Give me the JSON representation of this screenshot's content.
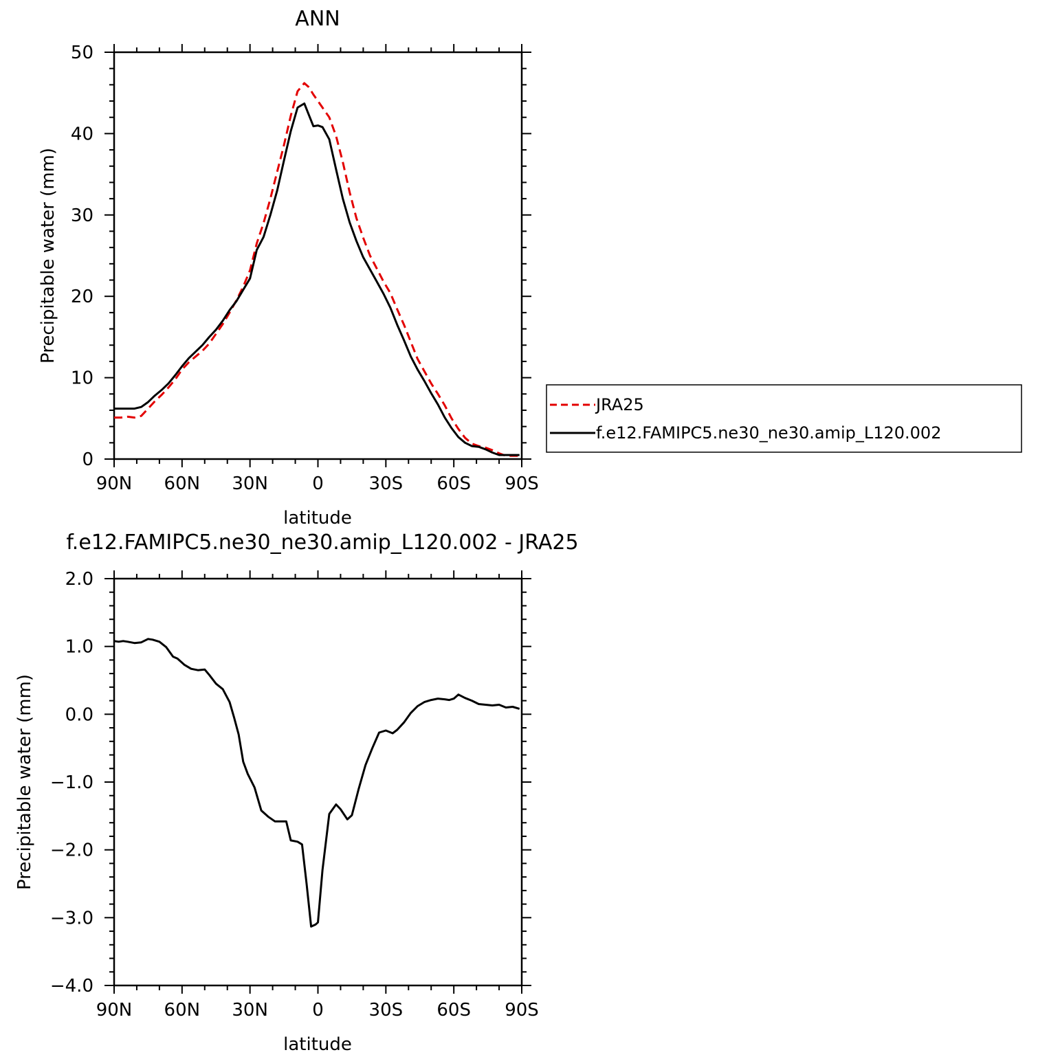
{
  "chart_data": [
    {
      "type": "line",
      "title": "ANN",
      "xlabel": "latitude",
      "ylabel": "Precipitable water (mm)",
      "xlim": [
        90,
        -90
      ],
      "ylim": [
        0,
        50
      ],
      "x_tick_labels": [
        "90N",
        "60N",
        "30N",
        "0",
        "30S",
        "60S",
        "90S"
      ],
      "y_tick_labels": [
        "0",
        "10",
        "20",
        "30",
        "40",
        "50"
      ],
      "grid": false,
      "legend_placement": "outside-right",
      "series": [
        {
          "name": "JRA25",
          "color": "#e30000",
          "style": "dashed",
          "x": [
            90,
            87,
            84,
            81,
            78,
            75,
            72,
            69,
            66,
            63,
            60,
            57,
            54,
            51,
            48,
            45,
            42,
            39,
            36,
            33,
            30,
            27,
            24,
            21,
            18,
            15,
            12,
            9,
            6,
            4,
            2,
            0,
            -2,
            -5,
            -8,
            -11,
            -14,
            -17,
            -20,
            -23,
            -26,
            -29,
            -32,
            -35,
            -38,
            -41,
            -44,
            -47,
            -50,
            -53,
            -56,
            -59,
            -62,
            -65,
            -68,
            -71,
            -74,
            -77,
            -80,
            -83,
            -86,
            -89
          ],
          "values": [
            5.1,
            5.1,
            5.2,
            5.1,
            5.3,
            6.2,
            7.1,
            7.9,
            8.8,
            9.8,
            11.0,
            11.9,
            12.6,
            13.3,
            14.2,
            15.4,
            16.6,
            18.0,
            19.5,
            21.2,
            23.2,
            26.5,
            29.0,
            32.0,
            35.3,
            38.6,
            42.2,
            45.2,
            46.2,
            45.7,
            44.8,
            44.0,
            43.2,
            42.0,
            39.7,
            36.5,
            32.8,
            29.6,
            27.2,
            25.0,
            23.4,
            21.8,
            20.4,
            18.4,
            16.5,
            14.4,
            12.3,
            10.8,
            9.3,
            8.0,
            6.6,
            5.0,
            3.7,
            2.6,
            1.9,
            1.6,
            1.4,
            1.1,
            0.7,
            0.4,
            0.4,
            0.4
          ]
        },
        {
          "name": "f.e12.FAMIPC5.ne30_ne30.amip_L120.002",
          "color": "#000000",
          "style": "solid",
          "x": [
            90,
            87,
            84,
            81,
            78,
            75,
            72,
            69,
            66,
            63,
            60,
            57,
            54,
            51,
            48,
            45,
            42,
            39,
            36,
            33,
            30,
            27,
            24,
            21,
            18,
            15,
            12,
            9,
            6,
            4,
            2,
            0,
            -2,
            -5,
            -8,
            -11,
            -14,
            -17,
            -20,
            -23,
            -26,
            -29,
            -32,
            -35,
            -38,
            -41,
            -44,
            -47,
            -50,
            -53,
            -56,
            -59,
            -62,
            -65,
            -68,
            -71,
            -74,
            -77,
            -80,
            -83,
            -86,
            -89
          ],
          "values": [
            6.2,
            6.2,
            6.2,
            6.2,
            6.4,
            7.0,
            7.8,
            8.5,
            9.3,
            10.3,
            11.4,
            12.4,
            13.2,
            14.0,
            15.0,
            15.9,
            17.0,
            18.3,
            19.4,
            20.8,
            22.2,
            25.7,
            27.3,
            30.0,
            33.0,
            36.7,
            40.3,
            43.2,
            43.7,
            42.3,
            40.9,
            41.0,
            40.8,
            39.3,
            35.6,
            32.0,
            29.1,
            26.8,
            24.8,
            23.3,
            21.8,
            20.3,
            18.6,
            16.5,
            14.6,
            12.6,
            11.0,
            9.6,
            8.1,
            6.7,
            5.1,
            3.8,
            2.7,
            2.0,
            1.6,
            1.5,
            1.2,
            0.8,
            0.5,
            0.5,
            0.5,
            0.5
          ]
        }
      ]
    },
    {
      "type": "line",
      "title": "f.e12.FAMIPC5.ne30_ne30.amip_L120.002 - JRA25",
      "xlabel": "latitude",
      "ylabel": "Precipitable water (mm)",
      "xlim": [
        90,
        -90
      ],
      "ylim": [
        -4.0,
        2.0
      ],
      "x_tick_labels": [
        "90N",
        "60N",
        "30N",
        "0",
        "30S",
        "60S",
        "90S"
      ],
      "y_tick_labels": [
        "−4.0",
        "−3.0",
        "−2.0",
        "−1.0",
        "0.0",
        "1.0",
        "2.0"
      ],
      "grid": false,
      "series": [
        {
          "color": "#000000",
          "style": "solid",
          "x": [
            90,
            88,
            86,
            84,
            81,
            78,
            75,
            73,
            70,
            67,
            64,
            62,
            59,
            56,
            53,
            50,
            48,
            45,
            42,
            39,
            37,
            35,
            33,
            31,
            28,
            25,
            22,
            19,
            16,
            14,
            12,
            9,
            7,
            5,
            3,
            1,
            0,
            -2,
            -5,
            -8,
            -10,
            -13,
            -15,
            -18,
            -21,
            -24,
            -27,
            -30,
            -33,
            -35,
            -38,
            -41,
            -44,
            -47,
            -50,
            -53,
            -56,
            -58,
            -60,
            -62,
            -65,
            -68,
            -71,
            -74,
            -77,
            -80,
            -83,
            -86,
            -89
          ],
          "values": [
            1.08,
            1.07,
            1.08,
            1.07,
            1.05,
            1.06,
            1.11,
            1.1,
            1.07,
            0.99,
            0.85,
            0.82,
            0.73,
            0.67,
            0.65,
            0.66,
            0.58,
            0.45,
            0.37,
            0.18,
            -0.05,
            -0.3,
            -0.7,
            -0.88,
            -1.08,
            -1.42,
            -1.51,
            -1.58,
            -1.58,
            -1.58,
            -1.86,
            -1.88,
            -1.92,
            -2.5,
            -3.13,
            -3.1,
            -3.07,
            -2.3,
            -1.47,
            -1.33,
            -1.4,
            -1.55,
            -1.49,
            -1.1,
            -0.75,
            -0.5,
            -0.27,
            -0.24,
            -0.28,
            -0.23,
            -0.12,
            0.02,
            0.12,
            0.18,
            0.21,
            0.23,
            0.22,
            0.21,
            0.23,
            0.29,
            0.24,
            0.2,
            0.15,
            0.14,
            0.13,
            0.14,
            0.1,
            0.11,
            0.08
          ]
        }
      ]
    }
  ],
  "legend": {
    "entries": [
      {
        "label": "JRA25",
        "color": "#e30000",
        "style": "dashed"
      },
      {
        "label": "f.e12.FAMIPC5.ne30_ne30.amip_L120.002",
        "color": "#000000",
        "style": "solid"
      }
    ]
  }
}
